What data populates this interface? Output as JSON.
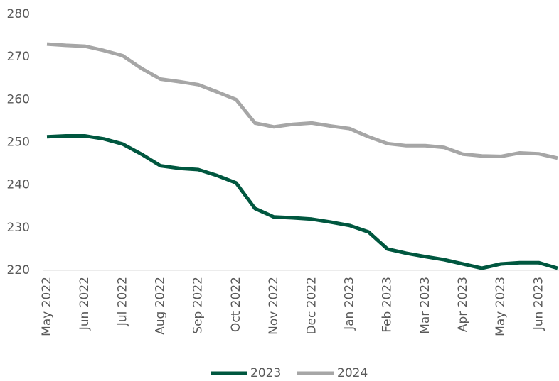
{
  "chart_data": {
    "type": "line",
    "categories": [
      "May 2022",
      null,
      "Jun 2022",
      null,
      "Jul 2022",
      null,
      "Aug 2022",
      null,
      "Sep 2022",
      null,
      "Oct 2022",
      null,
      "Nov 2022",
      null,
      "Dec 2022",
      null,
      "Jan 2023",
      null,
      "Feb 2023",
      null,
      "Mar 2023",
      null,
      "Apr 2023",
      null,
      "May 2023",
      null,
      "Jun 2023",
      null
    ],
    "series": [
      {
        "name": "2023",
        "color": "#00573f",
        "values": [
          251.3,
          251.5,
          251.5,
          250.8,
          249.6,
          247.2,
          244.5,
          243.9,
          243.6,
          242.2,
          240.5,
          234.5,
          232.5,
          232.3,
          232,
          231.3,
          230.5,
          229,
          225,
          224,
          223.2,
          222.5,
          221.5,
          220.5,
          221.5,
          221.8,
          221.8,
          220.5
        ]
      },
      {
        "name": "2024",
        "color": "#a6a6a6",
        "values": [
          273,
          272.7,
          272.5,
          271.5,
          270.3,
          267.3,
          264.8,
          264.2,
          263.5,
          261.8,
          260,
          254.5,
          253.6,
          254.2,
          254.5,
          253.8,
          253.2,
          251.3,
          249.7,
          249.2,
          249.2,
          248.8,
          247.2,
          246.8,
          246.7,
          247.5,
          247.3,
          246.3
        ]
      }
    ],
    "ylim": [
      220,
      280
    ],
    "yticks": [
      220,
      230,
      240,
      250,
      260,
      270,
      280
    ],
    "grid": false,
    "legend": "bottom"
  }
}
